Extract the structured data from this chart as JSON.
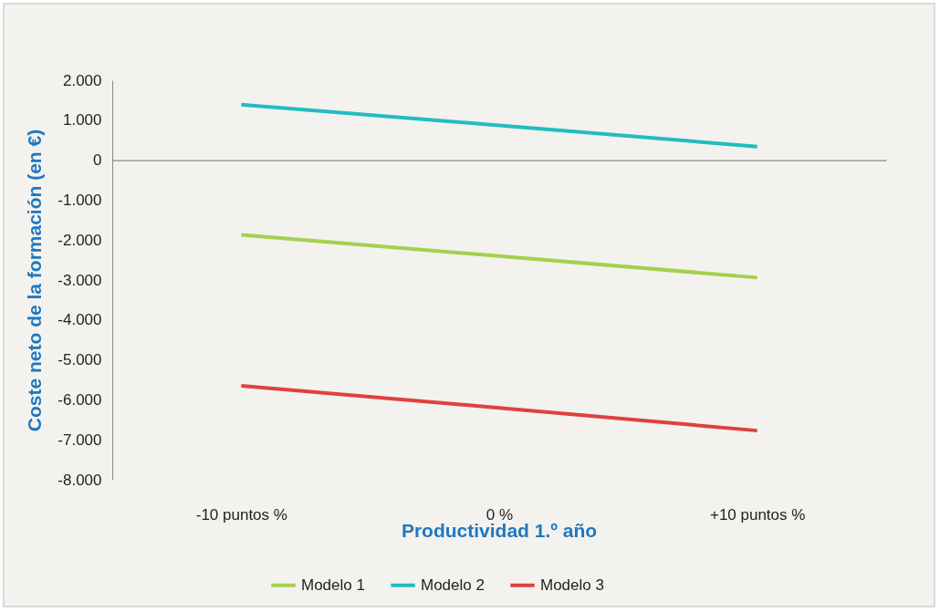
{
  "chart_data": {
    "type": "line",
    "xlabel": "Productividad 1.º año",
    "ylabel": "Coste neto de la formación (en €)",
    "categories": [
      "-10 puntos %",
      "0 %",
      "+10 puntos %"
    ],
    "series": [
      {
        "name": "Modelo 1",
        "color": "#a5cf4f",
        "values": [
          -1870,
          -2400,
          -2940
        ]
      },
      {
        "name": "Modelo 2",
        "color": "#22bcc0",
        "values": [
          1390,
          870,
          340
        ]
      },
      {
        "name": "Modelo 3",
        "color": "#e0403f",
        "values": [
          -5650,
          -6200,
          -6770
        ]
      }
    ],
    "ylim": [
      -8000,
      2000
    ],
    "yticks": [
      {
        "value": -8000,
        "label": "-8.000"
      },
      {
        "value": -7000,
        "label": "-7.000"
      },
      {
        "value": -6000,
        "label": "-6.000"
      },
      {
        "value": -5000,
        "label": "-5.000"
      },
      {
        "value": -4000,
        "label": "-4.000"
      },
      {
        "value": -3000,
        "label": "-3.000"
      },
      {
        "value": -2000,
        "label": "-2.000"
      },
      {
        "value": -1000,
        "label": "-1.000"
      },
      {
        "value": 0,
        "label": "0"
      },
      {
        "value": 1000,
        "label": "1.000"
      },
      {
        "value": 2000,
        "label": "2.000"
      }
    ],
    "legend": "bottom",
    "marker": "none",
    "line_style": "solid"
  }
}
